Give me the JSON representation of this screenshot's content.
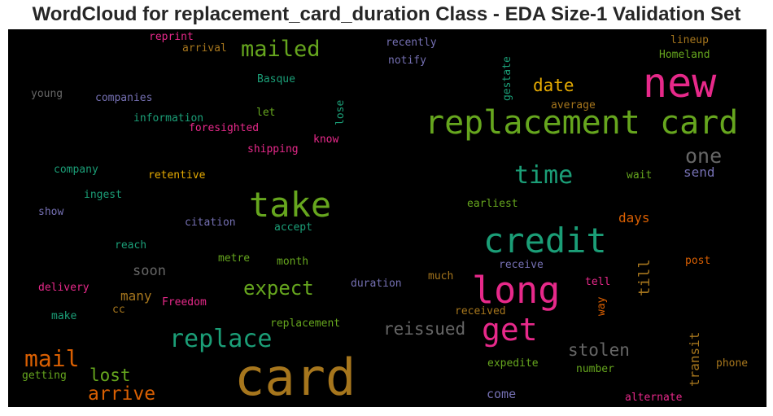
{
  "chart_data": {
    "type": "wordcloud",
    "title": "WordCloud for replacement_card_duration Class - EDA Size-1 Validation Set",
    "background": "#000000",
    "palette": [
      "#1b9e77",
      "#d95f02",
      "#7570b3",
      "#e7298a",
      "#66a61e",
      "#e6ab02",
      "#a6761d",
      "#666666"
    ],
    "words": [
      {
        "text": "card",
        "color": "#a6761d",
        "orientation": "horizontal"
      },
      {
        "text": "new",
        "color": "#e7298a",
        "orientation": "horizontal"
      },
      {
        "text": "replacement card",
        "color": "#66a61e",
        "orientation": "horizontal"
      },
      {
        "text": "credit",
        "color": "#1b9e77",
        "orientation": "horizontal"
      },
      {
        "text": "long",
        "color": "#e7298a",
        "orientation": "horizontal"
      },
      {
        "text": "take",
        "color": "#66a61e",
        "orientation": "horizontal"
      },
      {
        "text": "get",
        "color": "#e7298a",
        "orientation": "horizontal"
      },
      {
        "text": "replace",
        "color": "#1b9e77",
        "orientation": "horizontal"
      },
      {
        "text": "time",
        "color": "#1b9e77",
        "orientation": "horizontal"
      },
      {
        "text": "mail",
        "color": "#d95f02",
        "orientation": "horizontal"
      },
      {
        "text": "mailed",
        "color": "#66a61e",
        "orientation": "horizontal"
      },
      {
        "text": "expect",
        "color": "#66a61e",
        "orientation": "horizontal"
      },
      {
        "text": "one",
        "color": "#666666",
        "orientation": "horizontal"
      },
      {
        "text": "arrive",
        "color": "#d95f02",
        "orientation": "horizontal"
      },
      {
        "text": "reissued",
        "color": "#666666",
        "orientation": "horizontal"
      },
      {
        "text": "stolen",
        "color": "#666666",
        "orientation": "horizontal"
      },
      {
        "text": "date",
        "color": "#e6ab02",
        "orientation": "horizontal"
      },
      {
        "text": "lost",
        "color": "#66a61e",
        "orientation": "horizontal"
      },
      {
        "text": "send",
        "color": "#7570b3",
        "orientation": "horizontal"
      },
      {
        "text": "days",
        "color": "#d95f02",
        "orientation": "horizontal"
      },
      {
        "text": "many",
        "color": "#a6761d",
        "orientation": "horizontal"
      },
      {
        "text": "soon",
        "color": "#666666",
        "orientation": "horizontal"
      },
      {
        "text": "transit",
        "color": "#a6761d",
        "orientation": "vertical"
      },
      {
        "text": "till",
        "color": "#a6761d",
        "orientation": "vertical"
      },
      {
        "text": "come",
        "color": "#7570b3",
        "orientation": "horizontal"
      },
      {
        "text": "reprint",
        "color": "#e7298a",
        "orientation": "horizontal"
      },
      {
        "text": "arrival",
        "color": "#a6761d",
        "orientation": "horizontal"
      },
      {
        "text": "recently",
        "color": "#7570b3",
        "orientation": "horizontal"
      },
      {
        "text": "notify",
        "color": "#7570b3",
        "orientation": "horizontal"
      },
      {
        "text": "lineup",
        "color": "#a6761d",
        "orientation": "horizontal"
      },
      {
        "text": "Homeland",
        "color": "#66a61e",
        "orientation": "horizontal"
      },
      {
        "text": "Basque",
        "color": "#1b9e77",
        "orientation": "horizontal"
      },
      {
        "text": "young",
        "color": "#666666",
        "orientation": "horizontal"
      },
      {
        "text": "companies",
        "color": "#7570b3",
        "orientation": "horizontal"
      },
      {
        "text": "gestate",
        "color": "#1b9e77",
        "orientation": "vertical"
      },
      {
        "text": "average",
        "color": "#a6761d",
        "orientation": "horizontal"
      },
      {
        "text": "let",
        "color": "#66a61e",
        "orientation": "horizontal"
      },
      {
        "text": "lose",
        "color": "#1b9e77",
        "orientation": "vertical"
      },
      {
        "text": "information",
        "color": "#1b9e77",
        "orientation": "horizontal"
      },
      {
        "text": "foresighted",
        "color": "#e7298a",
        "orientation": "horizontal"
      },
      {
        "text": "know",
        "color": "#e7298a",
        "orientation": "horizontal"
      },
      {
        "text": "shipping",
        "color": "#e7298a",
        "orientation": "horizontal"
      },
      {
        "text": "company",
        "color": "#1b9e77",
        "orientation": "horizontal"
      },
      {
        "text": "retentive",
        "color": "#e6ab02",
        "orientation": "horizontal"
      },
      {
        "text": "wait",
        "color": "#66a61e",
        "orientation": "horizontal"
      },
      {
        "text": "ingest",
        "color": "#1b9e77",
        "orientation": "horizontal"
      },
      {
        "text": "earliest",
        "color": "#66a61e",
        "orientation": "horizontal"
      },
      {
        "text": "show",
        "color": "#7570b3",
        "orientation": "horizontal"
      },
      {
        "text": "citation",
        "color": "#7570b3",
        "orientation": "horizontal"
      },
      {
        "text": "accept",
        "color": "#1b9e77",
        "orientation": "horizontal"
      },
      {
        "text": "reach",
        "color": "#1b9e77",
        "orientation": "horizontal"
      },
      {
        "text": "metre",
        "color": "#66a61e",
        "orientation": "horizontal"
      },
      {
        "text": "month",
        "color": "#66a61e",
        "orientation": "horizontal"
      },
      {
        "text": "receive",
        "color": "#7570b3",
        "orientation": "horizontal"
      },
      {
        "text": "post",
        "color": "#d95f02",
        "orientation": "horizontal"
      },
      {
        "text": "much",
        "color": "#a6761d",
        "orientation": "horizontal"
      },
      {
        "text": "duration",
        "color": "#7570b3",
        "orientation": "horizontal"
      },
      {
        "text": "tell",
        "color": "#e7298a",
        "orientation": "horizontal"
      },
      {
        "text": "delivery",
        "color": "#e7298a",
        "orientation": "horizontal"
      },
      {
        "text": "way",
        "color": "#d95f02",
        "orientation": "vertical"
      },
      {
        "text": "cc",
        "color": "#a6761d",
        "orientation": "horizontal"
      },
      {
        "text": "Freedom",
        "color": "#e7298a",
        "orientation": "horizontal"
      },
      {
        "text": "make",
        "color": "#1b9e77",
        "orientation": "horizontal"
      },
      {
        "text": "received",
        "color": "#a6761d",
        "orientation": "horizontal"
      },
      {
        "text": "replacement",
        "color": "#66a61e",
        "orientation": "horizontal"
      },
      {
        "text": "expedite",
        "color": "#66a61e",
        "orientation": "horizontal"
      },
      {
        "text": "phone",
        "color": "#a6761d",
        "orientation": "horizontal"
      },
      {
        "text": "number",
        "color": "#66a61e",
        "orientation": "horizontal"
      },
      {
        "text": "getting",
        "color": "#66a61e",
        "orientation": "horizontal"
      },
      {
        "text": "alternate",
        "color": "#e7298a",
        "orientation": "horizontal"
      }
    ]
  }
}
